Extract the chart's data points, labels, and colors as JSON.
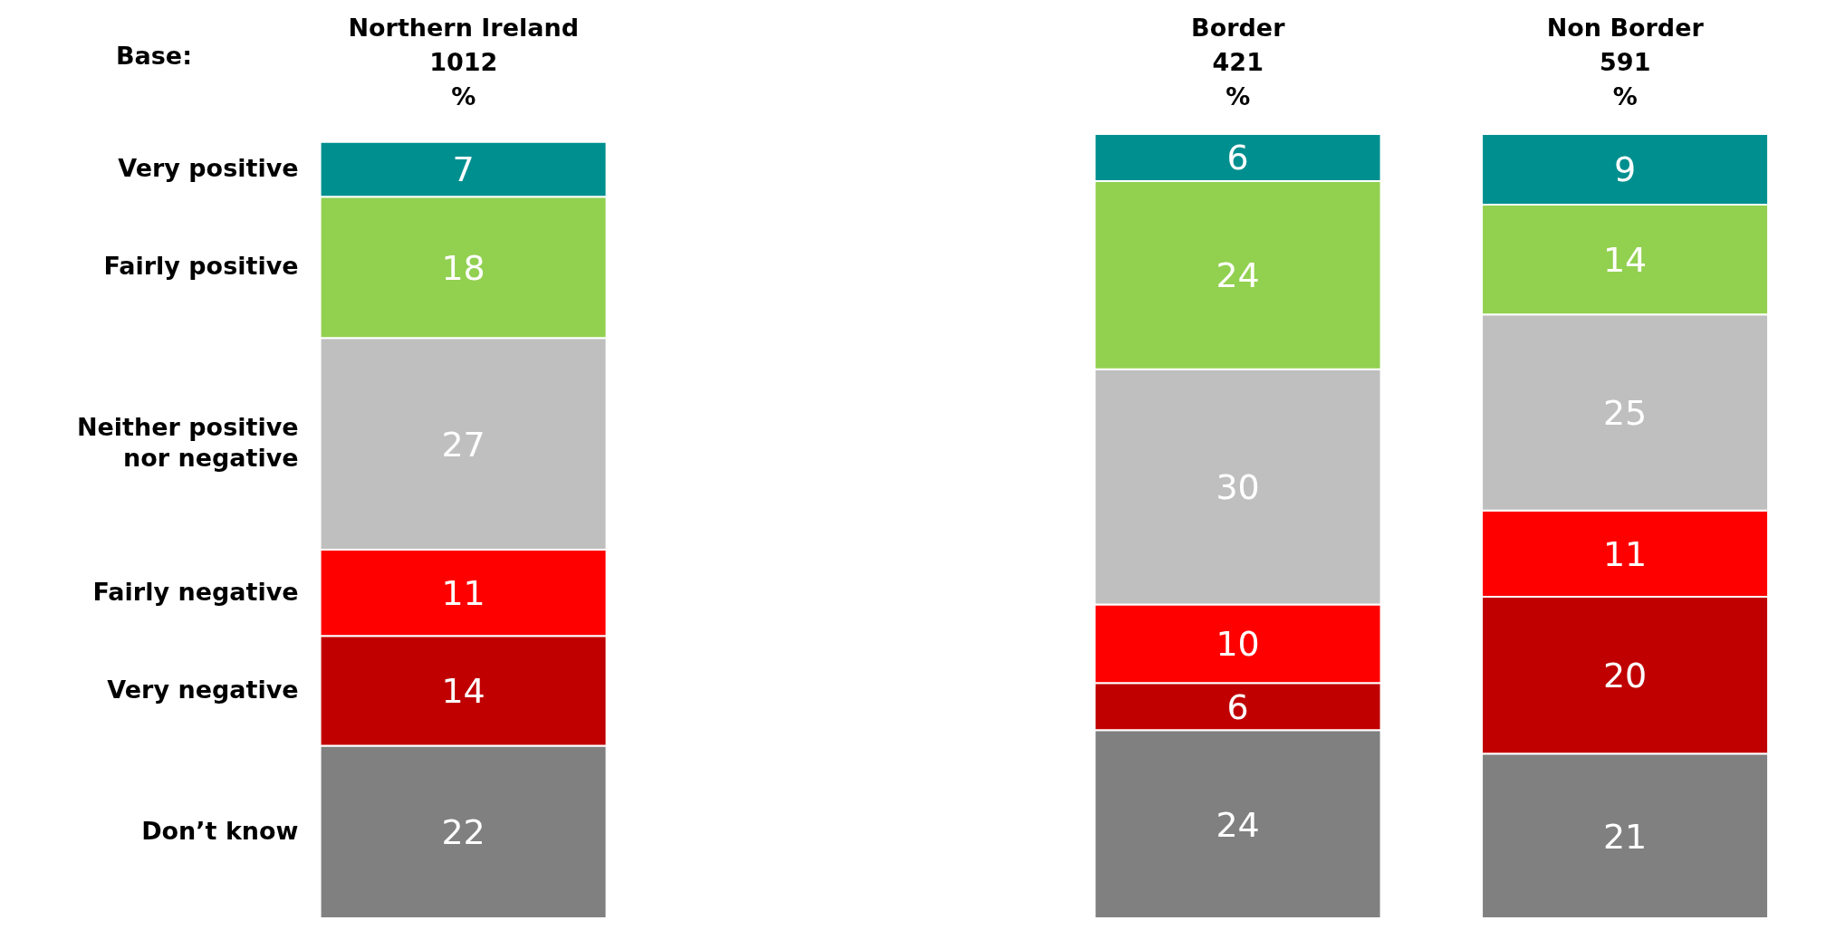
{
  "chart_data": {
    "type": "bar",
    "stacked": true,
    "data_labels": true,
    "legend": false,
    "grid": false,
    "categories": [
      "Northern Ireland\n1012\n%",
      null,
      "Border\n421\n%",
      "Non Border\n591\n%"
    ],
    "annotations": [
      "Base:"
    ],
    "series": [
      {
        "name": "Don’t know",
        "color": "#808080",
        "values": [
          22,
          null,
          24,
          21
        ]
      },
      {
        "name": "Very negative",
        "color": "#c00000",
        "values": [
          14,
          null,
          6,
          20
        ]
      },
      {
        "name": "Fairly negative",
        "color": "#ff0000",
        "values": [
          11,
          null,
          10,
          11
        ]
      },
      {
        "name": "Neither positive nor negative",
        "color": "#bfbfbf",
        "values": [
          27,
          null,
          30,
          25
        ]
      },
      {
        "name": "Fairly positive",
        "color": "#92d050",
        "values": [
          18,
          null,
          24,
          14
        ]
      },
      {
        "name": "Very positive",
        "color": "#008f8f",
        "values": [
          7,
          null,
          6,
          9
        ]
      }
    ]
  }
}
